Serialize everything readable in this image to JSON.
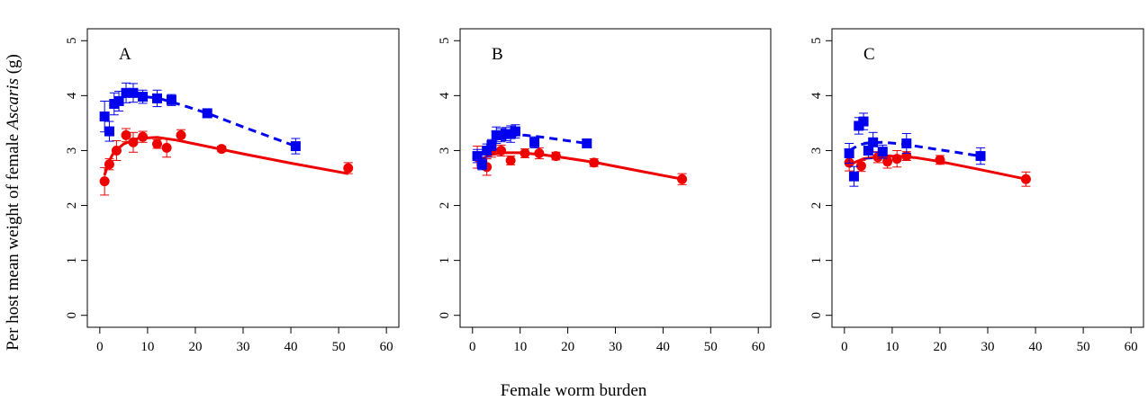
{
  "figure": {
    "ylabel_prefix": "Per host mean weight of female ",
    "ylabel_italic": "Ascaris",
    "ylabel_suffix": " (g)",
    "xlabel": "Female worm burden"
  },
  "colors": {
    "series_blue": "#0000ee",
    "series_red": "#ee0000"
  },
  "chart_data": [
    {
      "type": "scatter",
      "panel_label": "A",
      "xlim": [
        0,
        60
      ],
      "ylim": [
        0,
        5
      ],
      "x_ticks": [
        "0",
        "10",
        "20",
        "30",
        "40",
        "50",
        "60"
      ],
      "y_ticks": [
        "0",
        "1",
        "2",
        "3",
        "4",
        "5"
      ],
      "grid": false,
      "series": [
        {
          "marker": "square",
          "line_style": "dashed",
          "color": "#0000ee",
          "points": [
            {
              "x": 1,
              "y": 3.62,
              "err": 0.28
            },
            {
              "x": 2,
              "y": 3.35,
              "err": 0.18
            },
            {
              "x": 3,
              "y": 3.85,
              "err": 0.2
            },
            {
              "x": 4,
              "y": 3.9,
              "err": 0.18
            },
            {
              "x": 5.5,
              "y": 4.05,
              "err": 0.18
            },
            {
              "x": 7,
              "y": 4.05,
              "err": 0.17
            },
            {
              "x": 9,
              "y": 3.98,
              "err": 0.12
            },
            {
              "x": 12,
              "y": 3.95,
              "err": 0.15
            },
            {
              "x": 15,
              "y": 3.92,
              "err": 0.1
            },
            {
              "x": 22.5,
              "y": 3.68,
              "err": 0.08
            },
            {
              "x": 41,
              "y": 3.08,
              "err": 0.14
            }
          ],
          "fit": [
            [
              1,
              3.55
            ],
            [
              3,
              3.9
            ],
            [
              5,
              3.98
            ],
            [
              8,
              3.99
            ],
            [
              12,
              3.96
            ],
            [
              16,
              3.86
            ],
            [
              22.5,
              3.68
            ],
            [
              30,
              3.43
            ],
            [
              41,
              3.08
            ]
          ]
        },
        {
          "marker": "circle",
          "line_style": "solid",
          "color": "#ee0000",
          "points": [
            {
              "x": 1,
              "y": 2.44,
              "err": 0.25
            },
            {
              "x": 2,
              "y": 2.75,
              "err": 0.1
            },
            {
              "x": 3.5,
              "y": 3.0,
              "err": 0.18
            },
            {
              "x": 5.5,
              "y": 3.28,
              "err": 0.12
            },
            {
              "x": 7,
              "y": 3.15,
              "err": 0.18
            },
            {
              "x": 9,
              "y": 3.25,
              "err": 0.1
            },
            {
              "x": 12,
              "y": 3.12,
              "err": 0.08
            },
            {
              "x": 14,
              "y": 3.05,
              "err": 0.17
            },
            {
              "x": 17,
              "y": 3.28,
              "err": 0.1
            },
            {
              "x": 25.5,
              "y": 3.03,
              "err": 0.05
            },
            {
              "x": 52,
              "y": 2.68,
              "err": 0.1
            }
          ],
          "fit": [
            [
              1,
              2.55
            ],
            [
              2,
              2.82
            ],
            [
              3,
              2.98
            ],
            [
              5,
              3.12
            ],
            [
              8,
              3.22
            ],
            [
              12,
              3.24
            ],
            [
              16,
              3.19
            ],
            [
              20,
              3.12
            ],
            [
              30,
              2.94
            ],
            [
              40,
              2.77
            ],
            [
              52,
              2.58
            ]
          ]
        }
      ]
    },
    {
      "type": "scatter",
      "panel_label": "B",
      "xlim": [
        0,
        60
      ],
      "ylim": [
        0,
        5
      ],
      "x_ticks": [
        "0",
        "10",
        "20",
        "30",
        "40",
        "50",
        "60"
      ],
      "y_ticks": [
        "0",
        "1",
        "2",
        "3",
        "4",
        "5"
      ],
      "grid": false,
      "series": [
        {
          "marker": "square",
          "line_style": "dashed",
          "color": "#0000ee",
          "points": [
            {
              "x": 1,
              "y": 2.9,
              "err": 0.12
            },
            {
              "x": 2,
              "y": 2.75,
              "err": 0.1
            },
            {
              "x": 3,
              "y": 3.0,
              "err": 0.12
            },
            {
              "x": 4,
              "y": 3.1,
              "err": 0.1
            },
            {
              "x": 5,
              "y": 3.28,
              "err": 0.15
            },
            {
              "x": 6,
              "y": 3.28,
              "err": 0.12
            },
            {
              "x": 7,
              "y": 3.3,
              "err": 0.12
            },
            {
              "x": 8,
              "y": 3.3,
              "err": 0.15
            },
            {
              "x": 9,
              "y": 3.35,
              "err": 0.12
            },
            {
              "x": 13,
              "y": 3.15,
              "err": 0.1
            },
            {
              "x": 24,
              "y": 3.13,
              "err": 0.08
            }
          ],
          "fit": [
            [
              1,
              2.85
            ],
            [
              3,
              3.05
            ],
            [
              5,
              3.2
            ],
            [
              8,
              3.28
            ],
            [
              11,
              3.28
            ],
            [
              15,
              3.24
            ],
            [
              20,
              3.18
            ],
            [
              24,
              3.13
            ]
          ]
        },
        {
          "marker": "circle",
          "line_style": "solid",
          "color": "#ee0000",
          "points": [
            {
              "x": 1,
              "y": 2.88,
              "err": 0.2
            },
            {
              "x": 3,
              "y": 2.7,
              "err": 0.15
            },
            {
              "x": 4,
              "y": 3.0,
              "err": 0.12
            },
            {
              "x": 6,
              "y": 3.0,
              "err": 0.1
            },
            {
              "x": 8,
              "y": 2.82,
              "err": 0.08
            },
            {
              "x": 11,
              "y": 2.95,
              "err": 0.08
            },
            {
              "x": 14,
              "y": 2.95,
              "err": 0.1
            },
            {
              "x": 17.5,
              "y": 2.9,
              "err": 0.07
            },
            {
              "x": 25.5,
              "y": 2.78,
              "err": 0.07
            },
            {
              "x": 44,
              "y": 2.48,
              "err": 0.1
            }
          ],
          "fit": [
            [
              1,
              2.72
            ],
            [
              2,
              2.85
            ],
            [
              4,
              2.93
            ],
            [
              7,
              2.96
            ],
            [
              10,
              2.96
            ],
            [
              15,
              2.92
            ],
            [
              20,
              2.86
            ],
            [
              26,
              2.78
            ],
            [
              35,
              2.63
            ],
            [
              44,
              2.48
            ]
          ]
        }
      ]
    },
    {
      "type": "scatter",
      "panel_label": "C",
      "xlim": [
        0,
        60
      ],
      "ylim": [
        0,
        5
      ],
      "x_ticks": [
        "0",
        "10",
        "20",
        "30",
        "40",
        "50",
        "60"
      ],
      "y_ticks": [
        "0",
        "1",
        "2",
        "3",
        "4",
        "5"
      ],
      "grid": false,
      "series": [
        {
          "marker": "square",
          "line_style": "dashed",
          "color": "#0000ee",
          "points": [
            {
              "x": 1,
              "y": 2.95,
              "err": 0.18
            },
            {
              "x": 2,
              "y": 2.53,
              "err": 0.18
            },
            {
              "x": 3,
              "y": 3.45,
              "err": 0.15
            },
            {
              "x": 4,
              "y": 3.53,
              "err": 0.15
            },
            {
              "x": 5,
              "y": 3.0,
              "err": 0.15
            },
            {
              "x": 6,
              "y": 3.15,
              "err": 0.18
            },
            {
              "x": 8,
              "y": 2.98,
              "err": 0.12
            },
            {
              "x": 13,
              "y": 3.13,
              "err": 0.18
            },
            {
              "x": 28.5,
              "y": 2.9,
              "err": 0.15
            }
          ],
          "fit": [
            [
              1,
              3.0
            ],
            [
              3,
              3.1
            ],
            [
              5,
              3.14
            ],
            [
              8,
              3.15
            ],
            [
              12,
              3.12
            ],
            [
              18,
              3.04
            ],
            [
              24,
              2.96
            ],
            [
              28.5,
              2.9
            ]
          ]
        },
        {
          "marker": "circle",
          "line_style": "solid",
          "color": "#ee0000",
          "points": [
            {
              "x": 1,
              "y": 2.78,
              "err": 0.15
            },
            {
              "x": 3.5,
              "y": 2.72,
              "err": 0.1
            },
            {
              "x": 7,
              "y": 2.88,
              "err": 0.1
            },
            {
              "x": 9,
              "y": 2.8,
              "err": 0.12
            },
            {
              "x": 11,
              "y": 2.85,
              "err": 0.15
            },
            {
              "x": 13,
              "y": 2.9,
              "err": 0.08
            },
            {
              "x": 20,
              "y": 2.83,
              "err": 0.08
            },
            {
              "x": 38,
              "y": 2.48,
              "err": 0.13
            }
          ],
          "fit": [
            [
              1,
              2.7
            ],
            [
              2,
              2.78
            ],
            [
              4,
              2.85
            ],
            [
              7,
              2.89
            ],
            [
              11,
              2.9
            ],
            [
              15,
              2.87
            ],
            [
              20,
              2.8
            ],
            [
              28,
              2.66
            ],
            [
              38,
              2.48
            ]
          ]
        }
      ]
    }
  ]
}
